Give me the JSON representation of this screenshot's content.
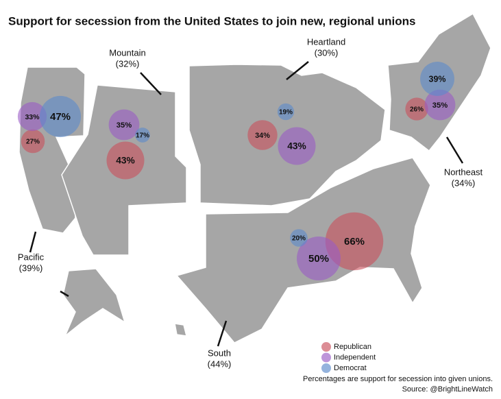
{
  "chart_data": {
    "type": "bubble-map",
    "title": "Support for secession from the United States to join new, regional unions",
    "categories": [
      "Pacific",
      "Mountain",
      "Heartland",
      "Northeast",
      "South"
    ],
    "category_labels": [
      "(39%)",
      "(32%)",
      "(30%)",
      "(34%)",
      "(44%)"
    ],
    "series": [
      {
        "name": "Republican",
        "color": "#c9505c",
        "values": [
          27,
          43,
          34,
          26,
          66
        ],
        "value_labels": [
          "27%",
          "43%",
          "34%",
          "26%",
          "66%"
        ]
      },
      {
        "name": "Independent",
        "color": "#9a5cc4",
        "values": [
          33,
          35,
          43,
          35,
          50
        ],
        "value_labels": [
          "33%",
          "35%",
          "43%",
          "35%",
          "50%"
        ]
      },
      {
        "name": "Democrat",
        "color": "#5b8bcb",
        "values": [
          47,
          17,
          19,
          39,
          20
        ],
        "value_labels": [
          "47%",
          "17%",
          "19%",
          "39%",
          "20%"
        ]
      }
    ],
    "notes": [
      "Percentages are support for secession into given unions.",
      "Source: @BrightLineWatch"
    ]
  }
}
